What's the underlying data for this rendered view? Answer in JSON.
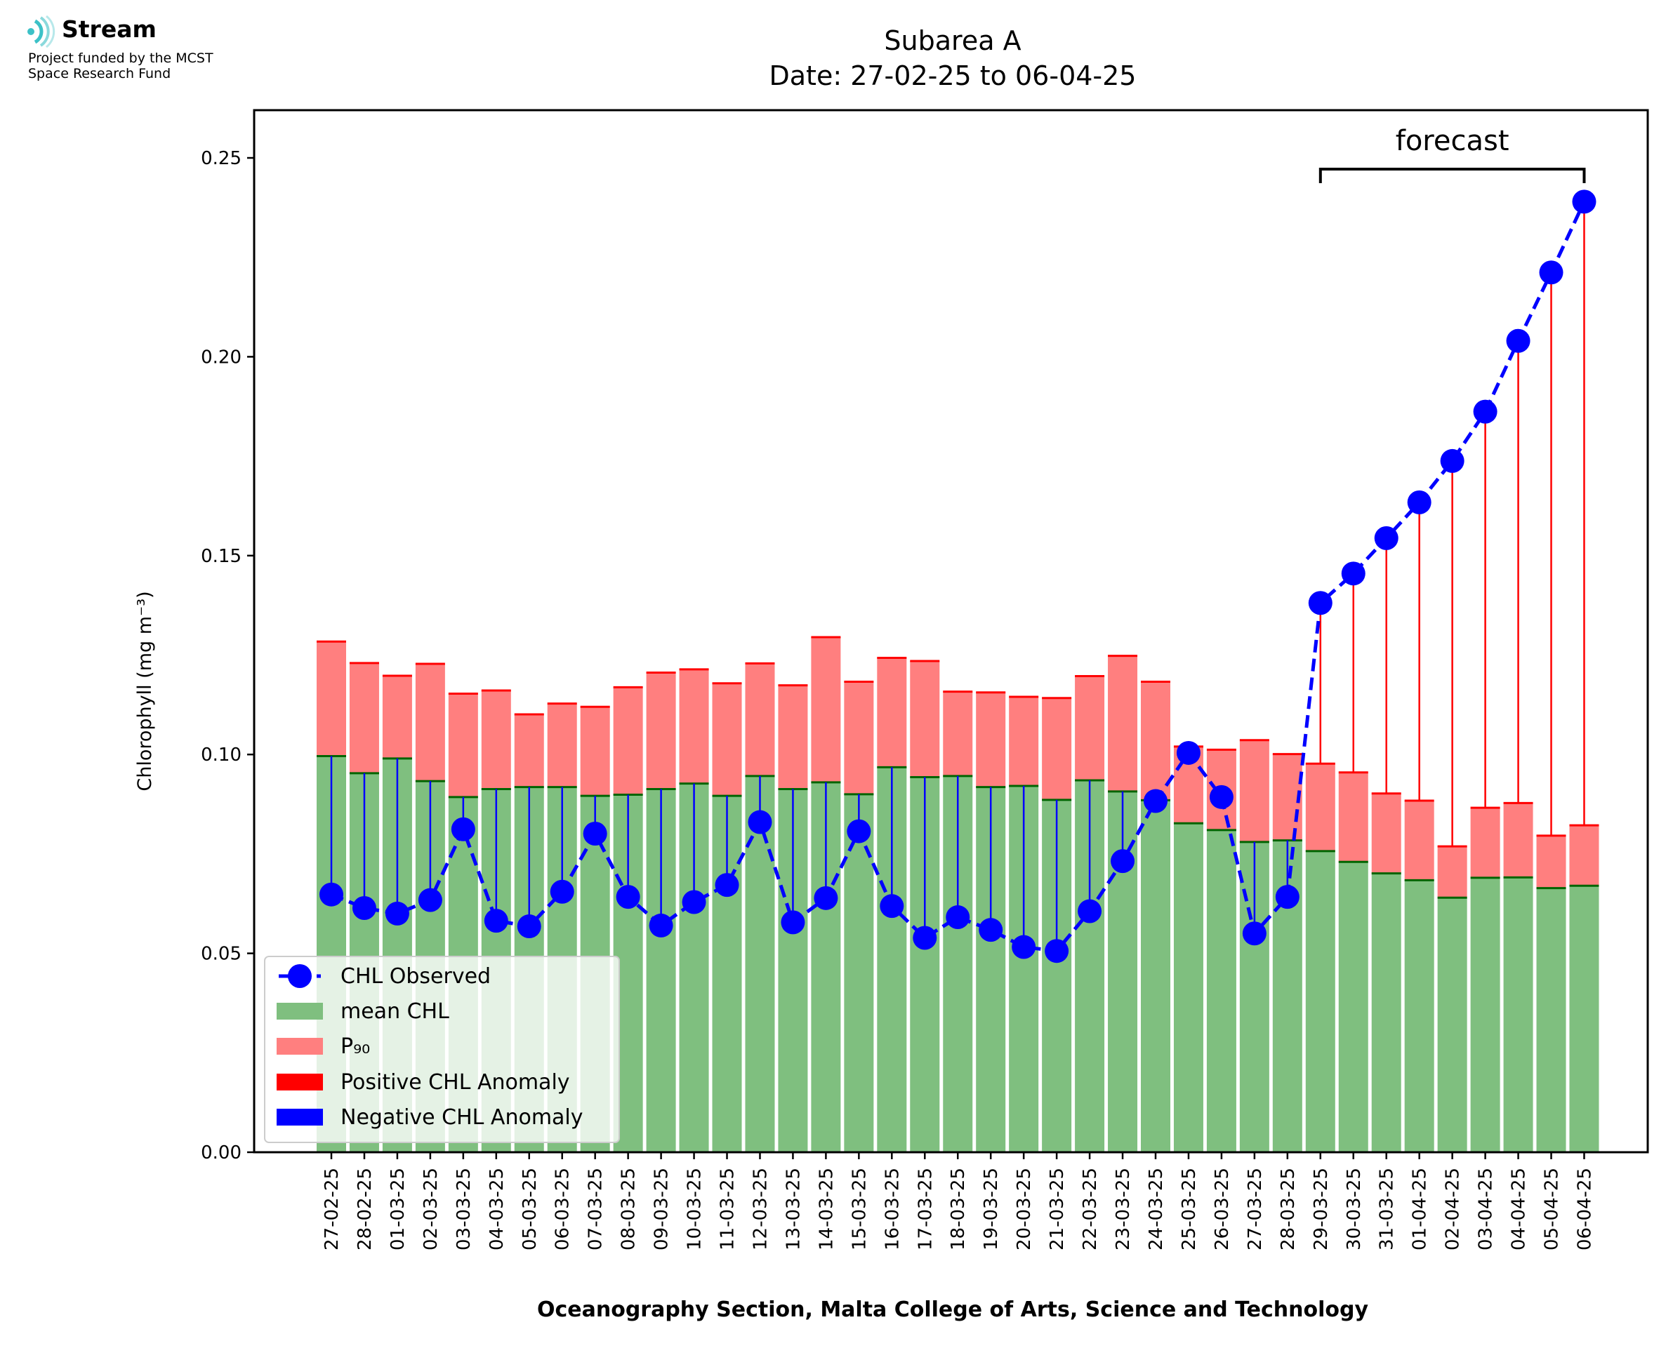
{
  "logo": {
    "name": "Stream",
    "line1": "Project funded by the MCST",
    "line2": "Space Research Fund"
  },
  "chart_data": {
    "type": "bar",
    "title": "Subarea A",
    "subtitle": "Date: 27-02-25 to 06-04-25",
    "ylabel": "Chlorophyll (mg m⁻³)",
    "xlabel": "Oceanography Section, Malta College of Arts, Science and Technology",
    "ylim": [
      0,
      0.262
    ],
    "yticks": [
      "0.00",
      "0.05",
      "0.10",
      "0.15",
      "0.20",
      "0.25"
    ],
    "grid": false,
    "legend_position": "lower-left",
    "annotation": "forecast",
    "forecast_start": "29-03-25",
    "forecast_end": "06-04-25",
    "categories": [
      "27-02-25",
      "28-02-25",
      "01-03-25",
      "02-03-25",
      "03-03-25",
      "04-03-25",
      "05-03-25",
      "06-03-25",
      "07-03-25",
      "08-03-25",
      "09-03-25",
      "10-03-25",
      "11-03-25",
      "12-03-25",
      "13-03-25",
      "14-03-25",
      "15-03-25",
      "16-03-25",
      "17-03-25",
      "18-03-25",
      "19-03-25",
      "20-03-25",
      "21-03-25",
      "22-03-25",
      "23-03-25",
      "24-03-25",
      "25-03-25",
      "26-03-25",
      "27-03-25",
      "28-03-25",
      "29-03-25",
      "30-03-25",
      "31-03-25",
      "01-04-25",
      "02-04-25",
      "03-04-25",
      "04-04-25",
      "05-04-25",
      "06-04-25"
    ],
    "series": [
      {
        "name": "CHL Observed",
        "color": "#0000ff",
        "values": [
          0.0648,
          0.0614,
          0.06,
          0.0634,
          0.0812,
          0.0582,
          0.0568,
          0.0655,
          0.0801,
          0.0642,
          0.057,
          0.0629,
          0.0672,
          0.083,
          0.0578,
          0.0639,
          0.0807,
          0.0619,
          0.0539,
          0.0591,
          0.0559,
          0.0516,
          0.0506,
          0.0606,
          0.0732,
          0.0883,
          0.1004,
          0.0893,
          0.055,
          0.0642,
          0.1381,
          0.1455,
          0.1544,
          0.1634,
          0.1738,
          0.1862,
          0.204,
          0.2212,
          0.239
        ]
      },
      {
        "name": "mean CHL",
        "color": "#7fbf7f",
        "values": [
          0.0996,
          0.0953,
          0.099,
          0.0933,
          0.0893,
          0.0913,
          0.0918,
          0.0918,
          0.0896,
          0.0899,
          0.0913,
          0.0927,
          0.0896,
          0.0946,
          0.0913,
          0.093,
          0.09,
          0.0968,
          0.0943,
          0.0946,
          0.0918,
          0.0921,
          0.0886,
          0.0935,
          0.0907,
          0.0885,
          0.0827,
          0.081,
          0.078,
          0.0784,
          0.0757,
          0.073,
          0.0701,
          0.0684,
          0.064,
          0.069,
          0.0691,
          0.0664,
          0.067
        ]
      },
      {
        "name": "P₉₀",
        "color": "#ff7f7f",
        "values": [
          0.1284,
          0.123,
          0.1198,
          0.1228,
          0.1153,
          0.1161,
          0.1101,
          0.1128,
          0.112,
          0.1169,
          0.1206,
          0.1214,
          0.1179,
          0.1229,
          0.1174,
          0.1295,
          0.1183,
          0.1243,
          0.1235,
          0.1158,
          0.1156,
          0.1145,
          0.1142,
          0.1197,
          0.1248,
          0.1183,
          0.102,
          0.1012,
          0.1036,
          0.1001,
          0.0977,
          0.0955,
          0.0902,
          0.0884,
          0.0769,
          0.0866,
          0.0878,
          0.0796,
          0.0822
        ]
      },
      {
        "name": "Positive CHL Anomaly",
        "color": "#ff0000"
      },
      {
        "name": "Negative CHL Anomaly",
        "color": "#0000ff"
      }
    ]
  }
}
